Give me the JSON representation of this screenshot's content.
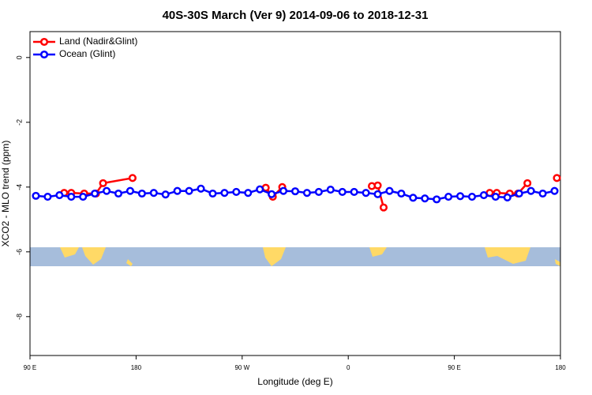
{
  "chart_data": {
    "type": "line",
    "title": "40S-30S March (Ver 9)   2014-09-06 to 2018-12-31",
    "x_label": "Longitude (deg E)",
    "y_label": "XCO2 - MLO trend (ppm)",
    "xlim": [
      90,
      540
    ],
    "xticks": [
      {
        "value": 90,
        "label": "90 E"
      },
      {
        "value": 180,
        "label": "180"
      },
      {
        "value": 270,
        "label": "90 W"
      },
      {
        "value": 360,
        "label": "0"
      },
      {
        "value": 450,
        "label": "90 E"
      },
      {
        "value": 540,
        "label": "180"
      }
    ],
    "ylim": [
      -9.2,
      0.8
    ],
    "yticks": [
      0,
      -2,
      -4,
      -6,
      -8
    ],
    "legend": "top-left",
    "series": [
      {
        "name": "Land (Nadir&Glint)",
        "color": "#ff0000",
        "x": [
          119,
          125,
          136,
          146,
          152,
          177,
          230,
          290,
          296,
          304,
          340,
          380,
          385,
          390,
          430,
          480,
          486,
          497,
          504,
          512,
          525,
          537
        ],
        "values": [
          -4.18,
          -4.18,
          -4.2,
          -4.2,
          -3.88,
          -3.72,
          null,
          -4.02,
          -4.3,
          -4.0,
          null,
          -3.97,
          -3.95,
          -4.63,
          null,
          -4.18,
          -4.18,
          -4.2,
          -4.2,
          -3.88,
          null,
          -3.72
        ]
      },
      {
        "name": "Ocean (Glint)",
        "color": "#0000ff",
        "x": [
          95,
          105,
          115,
          125,
          135,
          145,
          155,
          165,
          175,
          185,
          195,
          205,
          215,
          225,
          235,
          245,
          255,
          265,
          275,
          285,
          295,
          305,
          315,
          325,
          335,
          345,
          355,
          365,
          375,
          385,
          395,
          405,
          415,
          425,
          435,
          445,
          455,
          465,
          475,
          485,
          495,
          505,
          515,
          525,
          535
        ],
        "values": [
          -4.27,
          -4.3,
          -4.25,
          -4.3,
          -4.3,
          -4.2,
          -4.12,
          -4.2,
          -4.12,
          -4.2,
          -4.18,
          -4.23,
          -4.12,
          -4.12,
          -4.05,
          -4.2,
          -4.18,
          -4.15,
          -4.18,
          -4.07,
          -4.22,
          -4.12,
          -4.13,
          -4.18,
          -4.15,
          -4.08,
          -4.15,
          -4.15,
          -4.18,
          -4.22,
          -4.12,
          -4.2,
          -4.33,
          -4.35,
          -4.38,
          -4.3,
          -4.28,
          -4.3,
          -4.25,
          -4.3,
          -4.32,
          -4.2,
          -4.12,
          -4.2,
          -4.12
        ]
      }
    ]
  }
}
